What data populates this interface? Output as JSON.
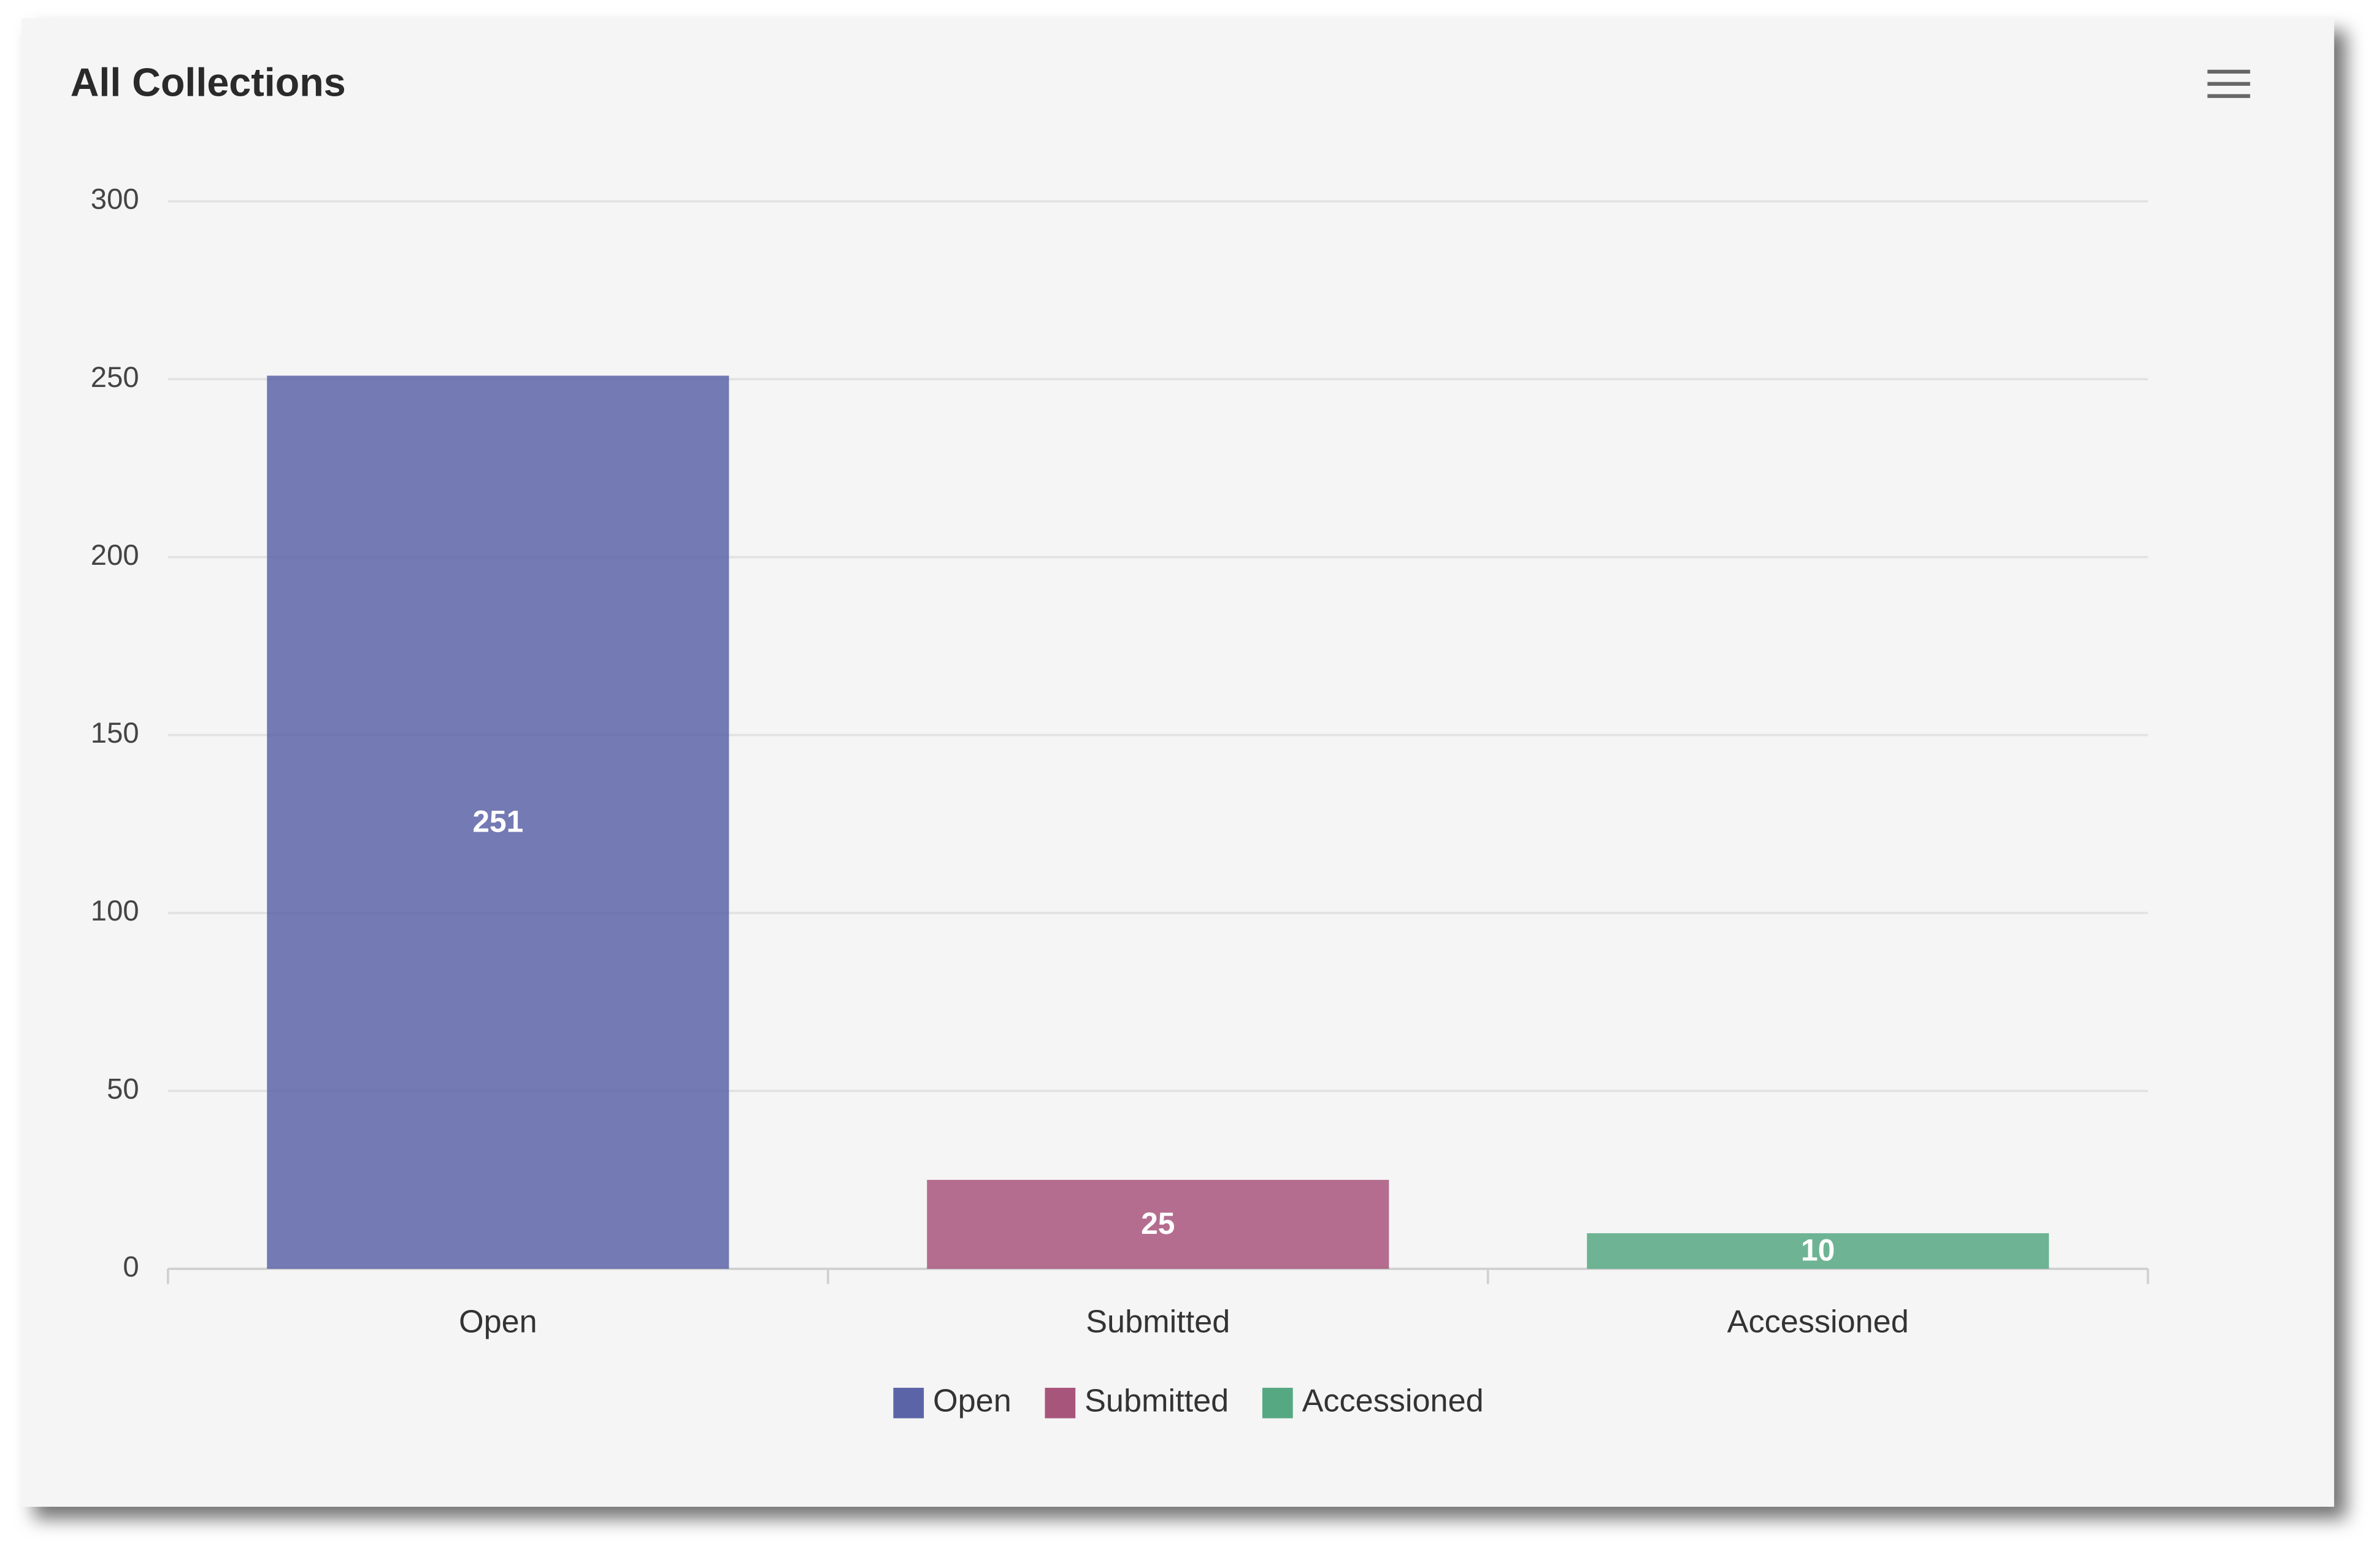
{
  "chart_data": {
    "type": "bar",
    "title": "All Collections",
    "categories": [
      "Open",
      "Submitted",
      "Accessioned"
    ],
    "values": [
      251,
      25,
      10
    ],
    "colors": [
      "#5c64a8",
      "#a8557c",
      "#56a883"
    ],
    "ylim": [
      0,
      300
    ],
    "yticks": [
      0,
      50,
      100,
      150,
      200,
      250,
      300
    ],
    "grid": true,
    "legend": "bottom"
  }
}
